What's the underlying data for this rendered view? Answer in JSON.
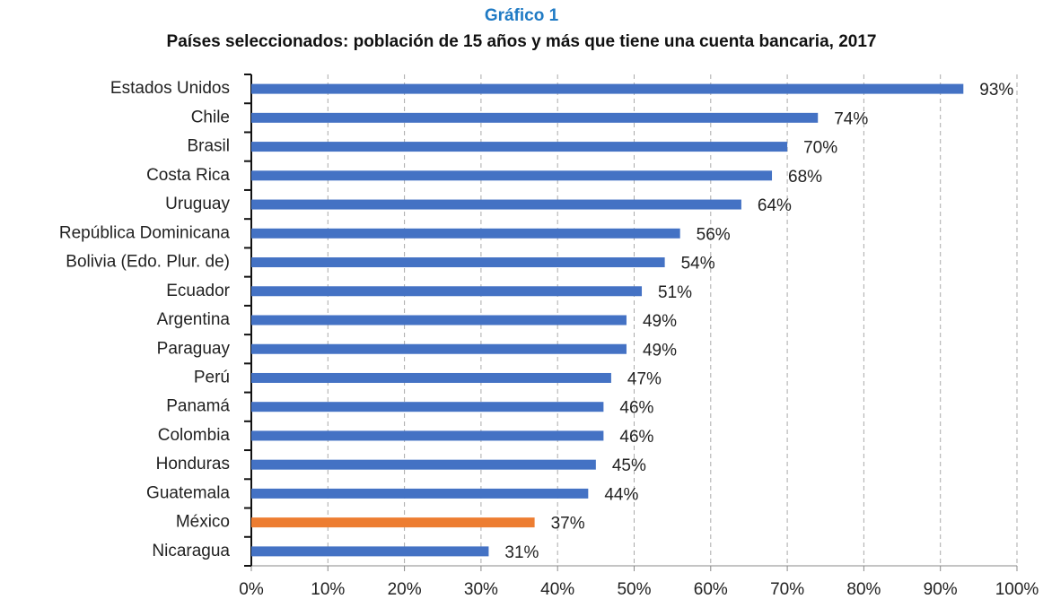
{
  "chart_data": {
    "type": "bar",
    "orientation": "horizontal",
    "title": "Gráfico 1",
    "subtitle": "Países seleccionados: población de 15 años y más que tiene una cuenta bancaria, 2017",
    "categories": [
      "Estados Unidos",
      "Chile",
      "Brasil",
      "Costa Rica",
      "Uruguay",
      "República Dominicana",
      "Bolivia (Edo. Plur. de)",
      "Ecuador",
      "Argentina",
      "Paraguay",
      "Perú",
      "Panamá",
      "Colombia",
      "Honduras",
      "Guatemala",
      "México",
      "Nicaragua"
    ],
    "values": [
      93,
      74,
      70,
      68,
      64,
      56,
      54,
      51,
      49,
      49,
      47,
      46,
      46,
      45,
      44,
      37,
      31
    ],
    "value_labels": [
      "93%",
      "74%",
      "70%",
      "68%",
      "64%",
      "56%",
      "54%",
      "51%",
      "49%",
      "49%",
      "47%",
      "46%",
      "46%",
      "45%",
      "44%",
      "37%",
      "31%"
    ],
    "colors": [
      "#4472c4",
      "#4472c4",
      "#4472c4",
      "#4472c4",
      "#4472c4",
      "#4472c4",
      "#4472c4",
      "#4472c4",
      "#4472c4",
      "#4472c4",
      "#4472c4",
      "#4472c4",
      "#4472c4",
      "#4472c4",
      "#4472c4",
      "#ed7d31",
      "#4472c4"
    ],
    "xlim": [
      0,
      100
    ],
    "xticks": [
      {
        "value": 0,
        "label": "0%"
      },
      {
        "value": 10,
        "label": "10%"
      },
      {
        "value": 20,
        "label": "20%"
      },
      {
        "value": 30,
        "label": "30%"
      },
      {
        "value": 40,
        "label": "40%"
      },
      {
        "value": 50,
        "label": "50%"
      },
      {
        "value": 60,
        "label": "60%"
      },
      {
        "value": 70,
        "label": "70%"
      },
      {
        "value": 80,
        "label": "80%"
      },
      {
        "value": 90,
        "label": "90%"
      },
      {
        "value": 100,
        "label": "100%"
      }
    ],
    "grid": true
  }
}
